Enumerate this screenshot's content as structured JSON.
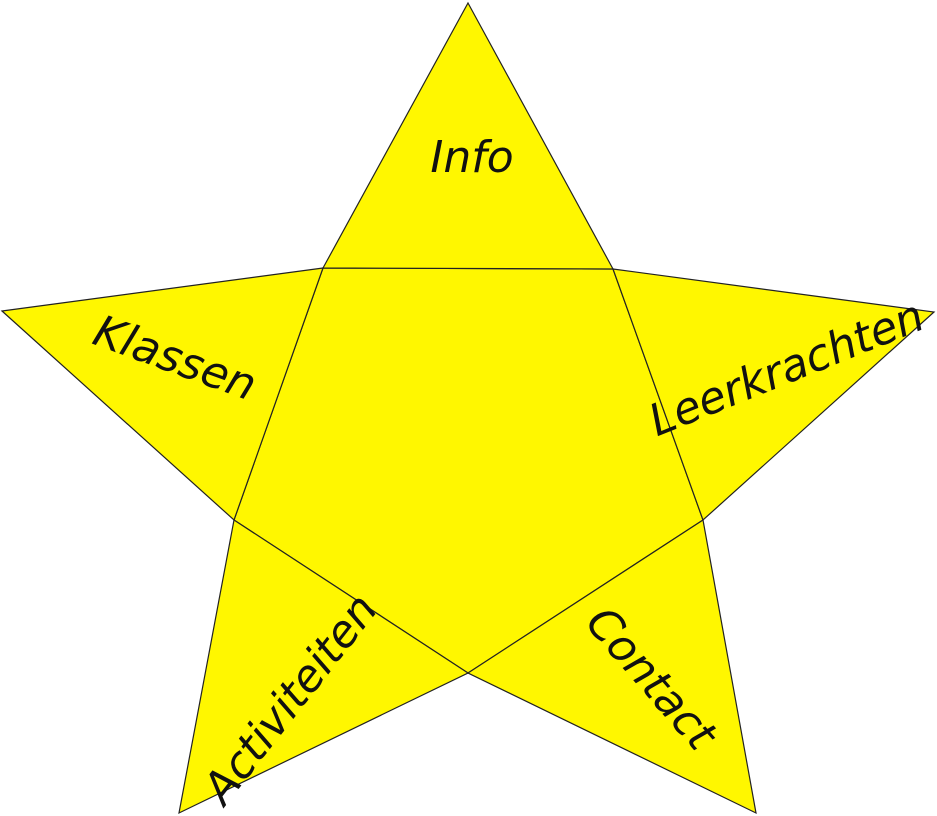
{
  "colors": {
    "star_fill": "#FFF700",
    "outline": "#222222",
    "label_text": "#111111"
  },
  "menu": {
    "info": "Info",
    "klassen": "Klassen",
    "leerkrachten": "Leerkrachten",
    "activiteiten": "Activiteiten",
    "contact": "Contact"
  }
}
